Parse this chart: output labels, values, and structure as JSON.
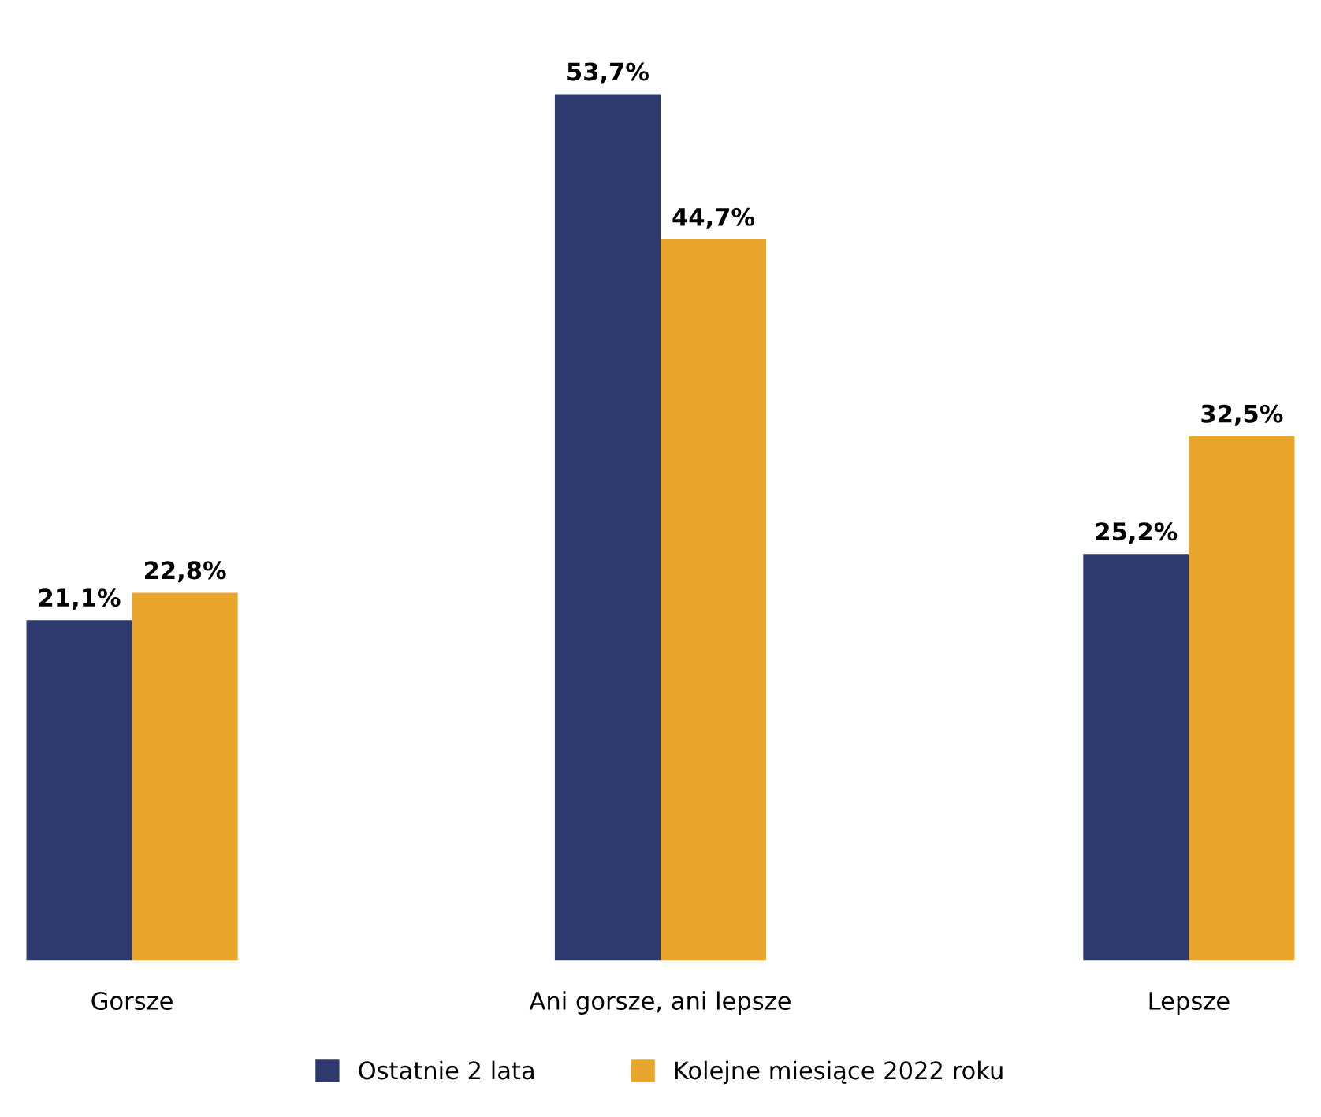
{
  "chart_data": {
    "type": "bar",
    "categories": [
      "Gorsze",
      "Ani gorsze, ani lepsze",
      "Lepsze"
    ],
    "series": [
      {
        "name": "Ostatnie 2 lata",
        "color": "#2e3a6e",
        "values": [
          21.1,
          53.7,
          25.2
        ],
        "value_labels": [
          "21,1%",
          "53,7%",
          "25,2%"
        ]
      },
      {
        "name": "Kolejne miesiące 2022 roku",
        "color": "#e9a52c",
        "values": [
          22.8,
          44.7,
          32.5
        ],
        "value_labels": [
          "22,8%",
          "44,7%",
          "32,5%"
        ]
      }
    ],
    "grid": false,
    "legend": "bottom"
  }
}
